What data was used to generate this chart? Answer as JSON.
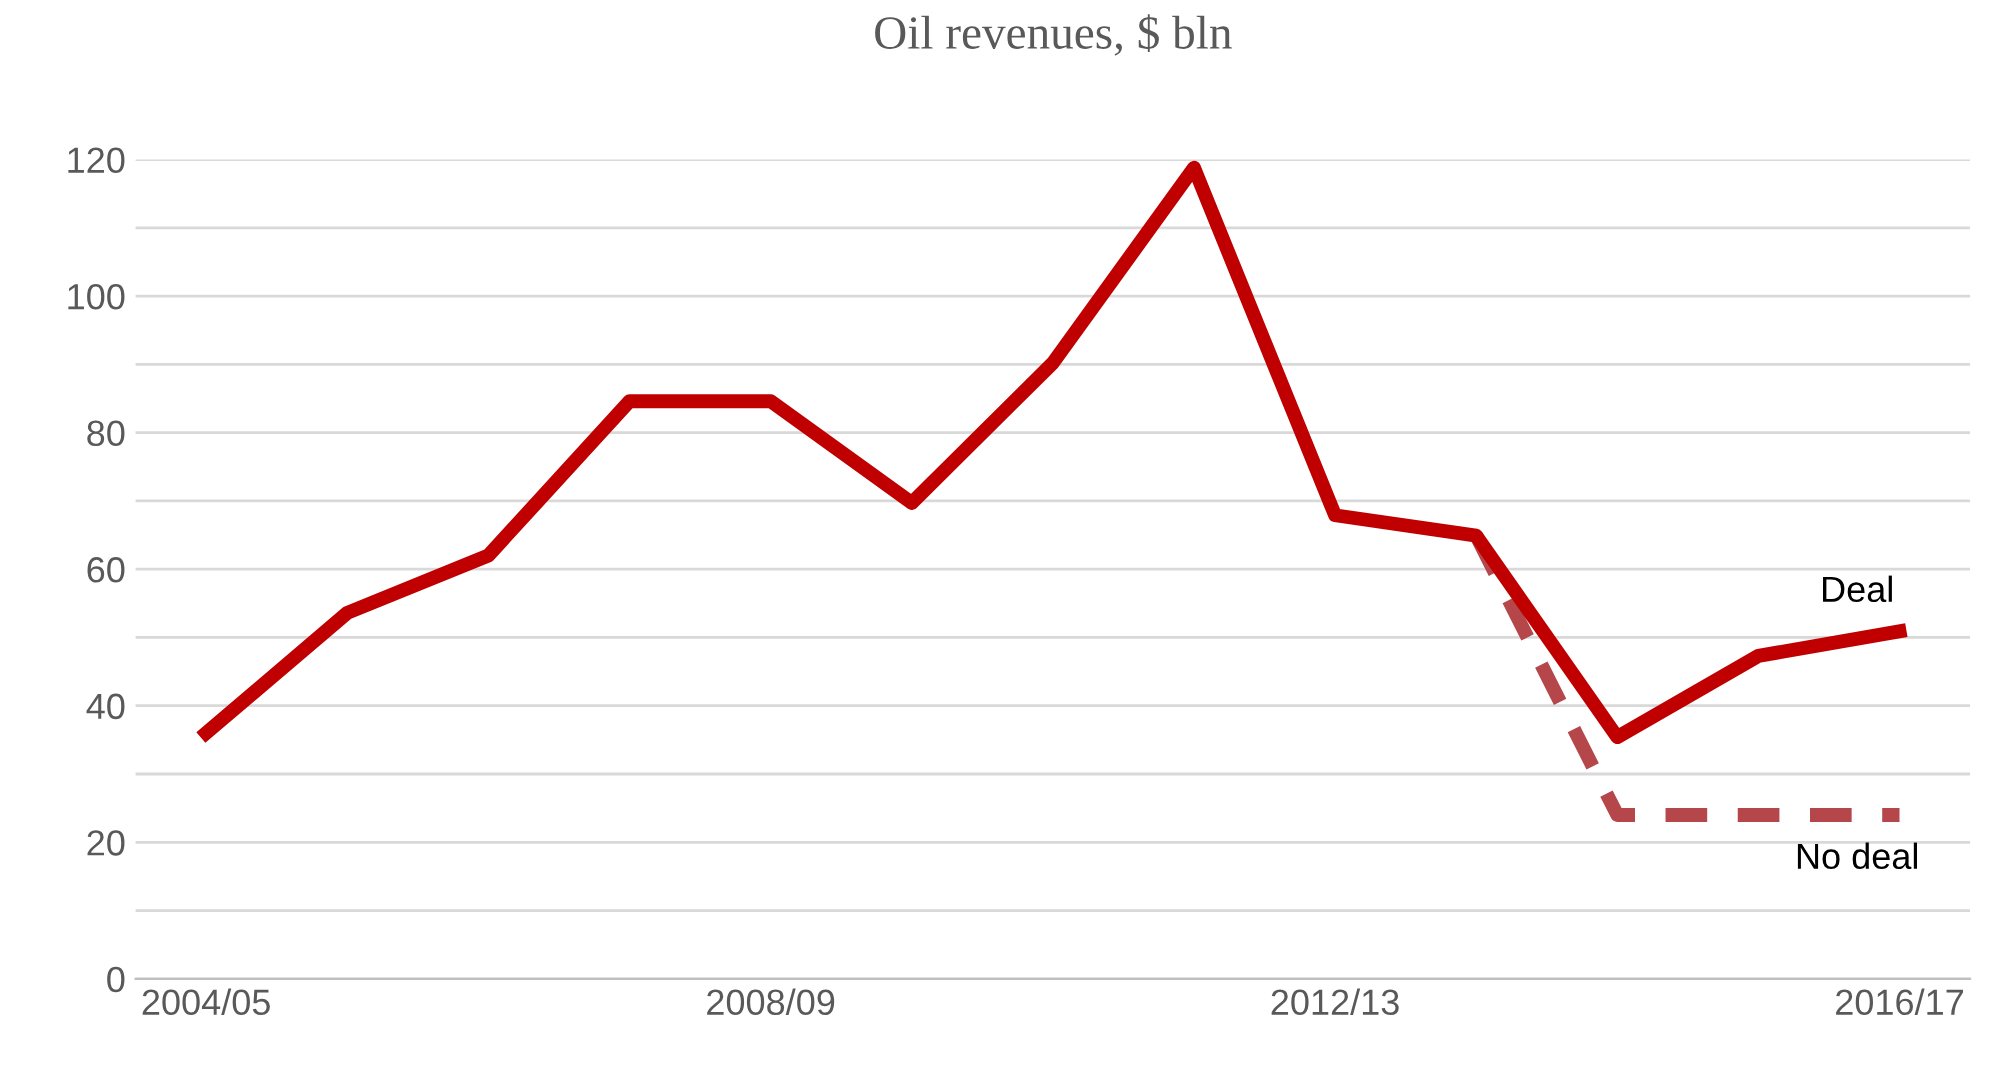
{
  "chart_data": {
    "type": "line",
    "title": "Oil revenues, $ bln",
    "categories": [
      "2004/05",
      null,
      null,
      null,
      "2008/09",
      null,
      null,
      null,
      "2012/13",
      null,
      null,
      null,
      "2016/17"
    ],
    "series": [
      {
        "name": "Deal",
        "color": "#c00000",
        "line_style": "solid",
        "values": [
          36,
          53.6,
          62,
          84.6,
          84.6,
          69.7,
          90.2,
          118.8,
          67.9,
          64.9,
          35.4,
          47.3,
          50.9
        ]
      },
      {
        "name": "No deal",
        "color": "#b5474b",
        "line_style": "dashed",
        "values": [
          null,
          null,
          null,
          null,
          null,
          null,
          null,
          null,
          null,
          64.9,
          24,
          24,
          24
        ]
      }
    ],
    "ylim": [
      0,
      120
    ],
    "yticks": [
      0,
      {
        "value": 10,
        "label": null
      },
      20,
      {
        "value": 30,
        "label": null
      },
      40,
      {
        "value": 50,
        "label": null
      },
      60,
      {
        "value": 70,
        "label": null
      },
      80,
      {
        "value": 90,
        "label": null
      },
      100,
      {
        "value": 110,
        "label": null
      },
      120
    ],
    "grid": "y",
    "legend": false,
    "marker": "none"
  }
}
